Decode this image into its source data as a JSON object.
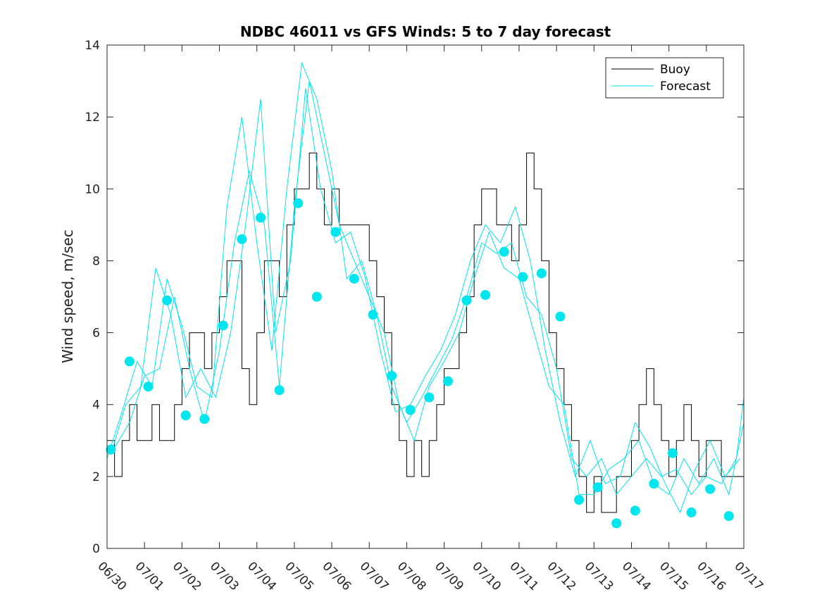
{
  "chart_data": {
    "type": "line",
    "title": "NDBC 46011 vs GFS Winds: 5 to 7 day forecast",
    "xlabel": "",
    "ylabel": "Wind speed, m/sec",
    "xlim": [
      "06/30",
      "07/17"
    ],
    "ylim": [
      0,
      14
    ],
    "x_ticks": [
      "06/30",
      "07/01",
      "07/02",
      "07/03",
      "07/04",
      "07/05",
      "07/06",
      "07/07",
      "07/08",
      "07/09",
      "07/10",
      "07/11",
      "07/12",
      "07/13",
      "07/14",
      "07/15",
      "07/16",
      "07/17"
    ],
    "y_ticks": [
      0,
      2,
      4,
      6,
      8,
      10,
      12,
      14
    ],
    "grid": false,
    "legend": {
      "placement": "top-right",
      "entries": [
        "Buoy",
        "Forecast"
      ]
    },
    "colors": {
      "buoy": "#000000",
      "forecast": "#00e5ee"
    },
    "series": [
      {
        "name": "Buoy",
        "style": "line",
        "x": [
          0.0,
          0.2,
          0.4,
          0.6,
          0.8,
          1.0,
          1.2,
          1.4,
          1.6,
          1.8,
          2.0,
          2.2,
          2.4,
          2.6,
          2.8,
          3.0,
          3.2,
          3.4,
          3.6,
          3.8,
          4.0,
          4.2,
          4.4,
          4.6,
          4.8,
          5.0,
          5.2,
          5.4,
          5.6,
          5.8,
          6.0,
          6.2,
          6.4,
          6.6,
          6.8,
          7.0,
          7.2,
          7.4,
          7.6,
          7.8,
          8.0,
          8.2,
          8.4,
          8.6,
          8.8,
          9.0,
          9.2,
          9.4,
          9.6,
          9.8,
          10.0,
          10.2,
          10.4,
          10.6,
          10.8,
          11.0,
          11.2,
          11.4,
          11.6,
          11.8,
          12.0,
          12.2,
          12.4,
          12.6,
          12.8,
          13.0,
          13.2,
          13.4,
          13.6,
          13.8,
          14.0,
          14.2,
          14.4,
          14.6,
          14.8,
          15.0,
          15.2,
          15.4,
          15.6,
          15.8,
          16.0,
          16.2,
          16.4,
          16.6,
          16.8,
          17.0
        ],
        "values": [
          3,
          2,
          3,
          4,
          3,
          3,
          4,
          3,
          3,
          4,
          5,
          6,
          6,
          5,
          6,
          7,
          8,
          8,
          5,
          4,
          6,
          8,
          8,
          7,
          9,
          10,
          10,
          11,
          10,
          9,
          10,
          9,
          9,
          9,
          9,
          8,
          7,
          6,
          4,
          3,
          2,
          3,
          2,
          3,
          4,
          5,
          5,
          6,
          7,
          9,
          10,
          10,
          9,
          9,
          8,
          9,
          11,
          10,
          8,
          6,
          5,
          4,
          3,
          2,
          1,
          2,
          1,
          1,
          2,
          2,
          3,
          4,
          5,
          4,
          3,
          2,
          3,
          4,
          3,
          2,
          3,
          3,
          2,
          2,
          2,
          2
        ]
      },
      {
        "name": "Forecast",
        "style": "line",
        "x": [
          0.0,
          0.4,
          0.8,
          1.2,
          1.6,
          2.0,
          2.4,
          2.8,
          3.2,
          3.6,
          4.0,
          4.4,
          4.8,
          5.2,
          5.6,
          6.0,
          6.4,
          6.8,
          7.2,
          7.6,
          8.0,
          8.4,
          8.8,
          9.2,
          9.6,
          10.0,
          10.4,
          10.8,
          11.2,
          11.6,
          12.0,
          12.4,
          12.8,
          13.2,
          13.6,
          14.0,
          14.4,
          14.8,
          15.2,
          15.6,
          16.0,
          16.4,
          16.8,
          17.0
        ],
        "values": [
          2.5,
          3.8,
          5.2,
          4.5,
          7.5,
          6.2,
          4.5,
          4.2,
          9.5,
          12.0,
          8.5,
          5.5,
          10.0,
          13.5,
          12.5,
          10.5,
          7.5,
          8.0,
          6.5,
          4.5,
          3.5,
          4.2,
          5.0,
          5.8,
          7.0,
          8.5,
          8.2,
          8.5,
          7.0,
          6.5,
          5.0,
          2.5,
          2.0,
          2.5,
          1.5,
          2.0,
          2.5,
          2.0,
          2.2,
          1.5,
          2.0,
          1.8,
          2.5,
          4.2
        ]
      },
      {
        "name": "Forecast",
        "style": "line",
        "x": [
          0.2,
          0.6,
          1.0,
          1.4,
          1.8,
          2.2,
          2.6,
          3.0,
          3.4,
          3.8,
          4.2,
          4.6,
          5.0,
          5.4,
          5.8,
          6.2,
          6.6,
          7.0,
          7.4,
          7.8,
          8.2,
          8.6,
          9.0,
          9.4,
          9.8,
          10.2,
          10.6,
          11.0,
          11.4,
          11.8,
          12.2,
          12.6,
          13.0,
          13.4,
          13.8,
          14.2,
          14.6,
          15.0,
          15.4,
          15.8,
          16.2,
          16.6,
          17.0
        ],
        "values": [
          2.8,
          3.5,
          4.8,
          5.0,
          7.0,
          5.0,
          3.5,
          5.5,
          8.5,
          10.5,
          9.0,
          4.5,
          9.5,
          13.0,
          11.0,
          9.0,
          8.0,
          7.0,
          6.0,
          4.0,
          3.0,
          4.5,
          5.2,
          6.0,
          7.5,
          8.8,
          7.8,
          7.5,
          6.0,
          4.5,
          4.0,
          1.5,
          1.5,
          2.2,
          2.5,
          3.0,
          1.8,
          1.5,
          2.5,
          1.8,
          2.5,
          1.5,
          3.5
        ]
      },
      {
        "name": "Forecast",
        "style": "line",
        "x": [
          0.1,
          0.5,
          0.9,
          1.3,
          1.7,
          2.1,
          2.5,
          2.9,
          3.3,
          3.7,
          4.1,
          4.5,
          4.9,
          5.3,
          5.7,
          6.1,
          6.5,
          6.9,
          7.3,
          7.7,
          8.1,
          8.5,
          8.9,
          9.3,
          9.7,
          10.1,
          10.5,
          10.9,
          11.3,
          11.7,
          12.1,
          12.5,
          12.9,
          13.3,
          13.7,
          14.1,
          14.5,
          14.9,
          15.3,
          15.7,
          16.1,
          16.5,
          16.9
        ],
        "values": [
          2.6,
          4.0,
          4.5,
          7.8,
          6.5,
          4.2,
          5.0,
          4.2,
          6.0,
          9.0,
          12.5,
          6.0,
          8.0,
          12.8,
          10.0,
          8.5,
          8.8,
          7.5,
          5.5,
          3.8,
          4.0,
          4.8,
          5.5,
          6.5,
          8.0,
          9.0,
          8.5,
          9.5,
          8.0,
          5.5,
          3.5,
          2.0,
          3.0,
          1.8,
          2.0,
          3.5,
          2.8,
          1.8,
          1.0,
          2.2,
          3.0,
          2.0,
          2.5
        ]
      },
      {
        "name": "Forecast",
        "style": "markers",
        "x": [
          0.1,
          0.6,
          1.1,
          1.6,
          2.1,
          2.6,
          3.1,
          3.6,
          4.1,
          4.6,
          5.1,
          5.6,
          6.1,
          6.6,
          7.1,
          7.6,
          8.1,
          8.6,
          9.1,
          9.6,
          10.1,
          10.6,
          11.1,
          11.6,
          12.1,
          12.6,
          13.1,
          13.6,
          14.1,
          14.6,
          15.1,
          15.6,
          16.1,
          16.6
        ],
        "values": [
          2.75,
          5.2,
          4.5,
          6.9,
          3.7,
          3.6,
          6.2,
          8.6,
          9.2,
          4.4,
          9.6,
          7.0,
          8.8,
          7.5,
          6.5,
          4.8,
          3.85,
          4.2,
          4.65,
          6.9,
          7.05,
          8.25,
          7.55,
          7.65,
          6.45,
          1.35,
          1.7,
          0.7,
          1.05,
          1.8,
          2.65,
          1.0,
          1.65,
          0.9
        ]
      }
    ]
  }
}
